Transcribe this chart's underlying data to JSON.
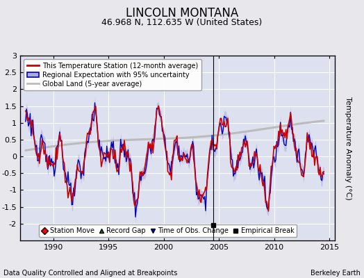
{
  "title": "LINCOLN MONTANA",
  "subtitle": "46.968 N, 112.635 W (United States)",
  "ylabel": "Temperature Anomaly (°C)",
  "footer_left": "Data Quality Controlled and Aligned at Breakpoints",
  "footer_right": "Berkeley Earth",
  "xlim": [
    1987.0,
    2015.5
  ],
  "ylim": [
    -2.5,
    3.0
  ],
  "yticks": [
    -2,
    -1.5,
    -1,
    -0.5,
    0,
    0.5,
    1,
    1.5,
    2,
    2.5,
    3
  ],
  "ytick_labels": [
    "-2",
    "-1.5",
    "-1",
    "-0.5",
    "0",
    "0.5",
    "1",
    "1.5",
    "2",
    "2.5",
    "3"
  ],
  "xticks": [
    1990,
    1995,
    2000,
    2005,
    2010,
    2015
  ],
  "background_color": "#e8e8ec",
  "plot_bg_color": "#dde0ee",
  "grid_color": "#ffffff",
  "red_line_color": "#cc0000",
  "blue_line_color": "#0000bb",
  "blue_fill_color": "#aaaadd",
  "gray_line_color": "#bbbbbb",
  "empirical_break_x": 2004.5,
  "empirical_break_y": -2.05,
  "legend1_labels": [
    "This Temperature Station (12-month average)",
    "Regional Expectation with 95% uncertainty",
    "Global Land (5-year average)"
  ],
  "legend2_labels": [
    "Station Move",
    "Record Gap",
    "Time of Obs. Change",
    "Empirical Break"
  ],
  "title_fontsize": 12,
  "subtitle_fontsize": 9,
  "axis_fontsize": 8,
  "tick_fontsize": 8,
  "legend_fontsize": 7,
  "footer_fontsize": 7
}
